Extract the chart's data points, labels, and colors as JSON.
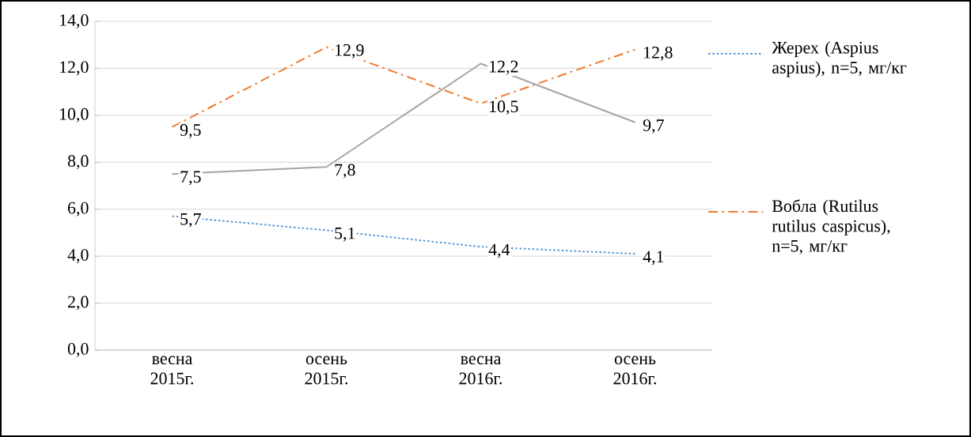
{
  "chart_data": {
    "type": "line",
    "categories": [
      "весна 2015г.",
      "осень 2015г.",
      "весна 2016г.",
      "осень 2016г."
    ],
    "series": [
      {
        "name": "Жерех (Aspius aspius), n=5, мг/кг",
        "color": "#5b9bd5",
        "line_style": "dotted",
        "values": [
          5.7,
          5.1,
          4.4,
          4.1
        ],
        "value_labels": [
          "5,7",
          "5,1",
          "4,4",
          "4,1"
        ]
      },
      {
        "name": "Вобла (Rutilus rutilus caspicus), n=5, мг/кг",
        "color": "#ed7d31",
        "line_style": "dashdot",
        "values": [
          9.5,
          12.9,
          10.5,
          12.8
        ],
        "value_labels": [
          "9,5",
          "12,9",
          "10,5",
          "12,8"
        ]
      },
      {
        "color": "#a5a5a5",
        "line_style": "solid",
        "values": [
          7.5,
          7.8,
          12.2,
          9.7
        ],
        "value_labels": [
          "7,5",
          "7,8",
          "12,2",
          "9,7"
        ]
      }
    ],
    "ylim": [
      0,
      14
    ],
    "yticks": [
      {
        "value": 0,
        "label": "0,0"
      },
      {
        "value": 2,
        "label": "2,0"
      },
      {
        "value": 4,
        "label": "4,0"
      },
      {
        "value": 6,
        "label": "6,0"
      },
      {
        "value": 8,
        "label": "8,0"
      },
      {
        "value": 10,
        "label": "10,0"
      },
      {
        "value": 12,
        "label": "12,0"
      },
      {
        "value": 14,
        "label": "14,0"
      }
    ],
    "grid": "y",
    "legend": "right",
    "marker": "none"
  }
}
